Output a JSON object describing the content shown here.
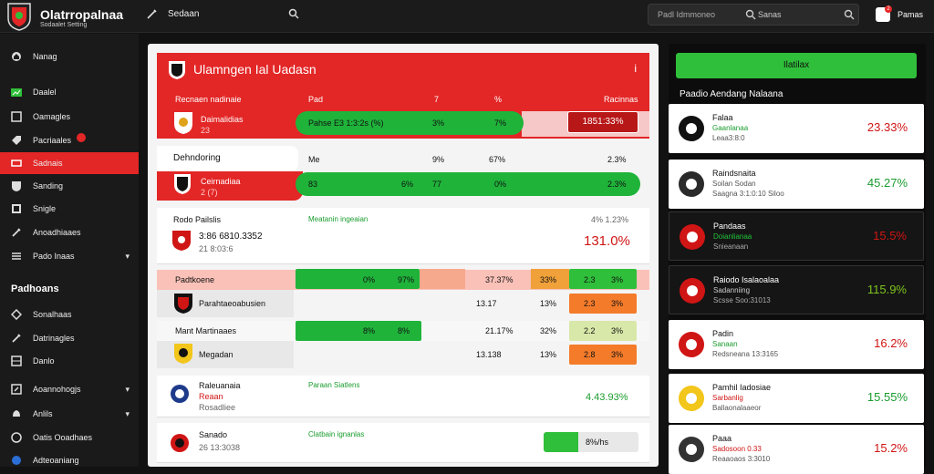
{
  "app": {
    "title": "Olatrropalnaa",
    "subtitle": "Sodaalet Setting"
  },
  "topnav": {
    "label": "Sedaan"
  },
  "search": {
    "placeholder": "Padl Idmmoneo",
    "label": "Sanas"
  },
  "user": {
    "label": "Pamas",
    "badge": "2"
  },
  "sidebar": {
    "items": [
      {
        "label": "Nanag",
        "icon": "home-icon"
      },
      {
        "label": "Daalel",
        "icon": "chart-icon"
      },
      {
        "label": "Oamagles",
        "icon": "calendar-icon"
      },
      {
        "label": "Pacriaales",
        "icon": "tag-icon"
      },
      {
        "label": "Sadnais",
        "icon": "ticket-icon",
        "active": true
      },
      {
        "label": "Sanding",
        "icon": "shield-icon"
      },
      {
        "label": "Snigle",
        "icon": "grid-icon"
      },
      {
        "label": "Anoadhiaaes",
        "icon": "edit-icon"
      },
      {
        "label": "Pado Inaas",
        "icon": "list-icon"
      }
    ],
    "section_title": "Padhoans",
    "section_items": [
      {
        "label": "Sonalhaas",
        "icon": "pin-icon"
      },
      {
        "label": "Datrinagles",
        "icon": "edit-icon"
      },
      {
        "label": "Danlo",
        "icon": "table-icon"
      },
      {
        "label": "Aoannohogjs",
        "icon": "export-icon"
      },
      {
        "label": "Anlils",
        "icon": "bell-icon"
      },
      {
        "label": "Oatis Ooadhaes",
        "icon": "user-icon"
      },
      {
        "label": "Adteoaniang",
        "icon": "globe-icon"
      }
    ]
  },
  "main": {
    "hero": {
      "title": "Ulamngen Ial Uadasn",
      "menu": "i",
      "headers": [
        "Recnaen nadinaie",
        "Pad",
        "7",
        "%",
        "Racinnas"
      ],
      "row": {
        "team": "Daimalidias",
        "sub": "23",
        "bar": [
          "Pahse E3 1:3:2s (%)",
          "3%",
          "7%"
        ],
        "value": "1851:33%"
      }
    },
    "row2": {
      "label": "Dehndoring",
      "team": "Ceirnadiaa",
      "sub": "2 (7)",
      "cols": [
        "Me",
        "9%",
        "67%",
        "2.3%"
      ],
      "bar": [
        "83",
        "6%",
        "77",
        "0%",
        "2.3%"
      ]
    },
    "card1": {
      "title": "Rodo Pailslis",
      "green_label": "Meatanin ingeaian",
      "line": "3:86 6810.3352",
      "sub": "21 8:03:6",
      "top_right": "4% 1.23%",
      "value": "131.0%"
    },
    "table": {
      "header": "Padtkoene",
      "row1": {
        "team": "Parahtaeoabusien",
        "bar": [
          "0%",
          "97%"
        ],
        "cols": [
          "37.37%",
          "33%",
          "2.3",
          "3%"
        ],
        "c2": [
          "13.17",
          "13%",
          "2.3",
          "3%"
        ]
      },
      "row2_header": "Mant Martinaaes",
      "row2": {
        "team": "Megadan",
        "bar": [
          "8%",
          "8%"
        ],
        "cols": [
          "21.17%",
          "32%",
          "2.2",
          "3%"
        ],
        "c2": [
          "13.138",
          "13%",
          "2.8",
          "3%"
        ]
      }
    },
    "card3": {
      "title": "Raleuanaia",
      "sub1": "Reaan",
      "sub2": "Rosadliee",
      "green_label": "Paraan Siatlens",
      "value": "4.43.93%"
    },
    "card4": {
      "title": "Sanado",
      "sub": "26 13:3038",
      "green_label": "Clatbain ignanlas",
      "bar": "8%/hs"
    }
  },
  "rightpanel": {
    "cta": "Ilatilax",
    "title": "Paadio Aendang Nalaana",
    "cards": [
      {
        "name": "Falaa",
        "s1": "Gaanlanaa",
        "s2": "Leaa3:8:0",
        "pct": "23.33%",
        "pct_color": "#d01515",
        "s1_color": "#1a9c2e",
        "dark": false
      },
      {
        "name": "Raindsnaita",
        "s1": "Soilan Sodan",
        "s2": "Saagna 3:1:0:10 Siloo",
        "pct": "45.27%",
        "pct_color": "#1a9c2e",
        "s1_color": "#555",
        "dark": false
      },
      {
        "name": "Pandaas",
        "s1": "Doianlianaa",
        "s2": "Snieanaan",
        "pct": "15.5%",
        "pct_color": "#d01515",
        "s1_color": "#1fc43a",
        "dark": true
      },
      {
        "name": "Raiodo Isalaoalaa",
        "s1": "Sadanniing",
        "s2": "Scsse Soo:31013",
        "pct": "115.9%",
        "pct_color": "#7ec41f",
        "s1_color": "#ccc",
        "dark": true
      },
      {
        "name": "Padin",
        "s1": "Sanaan",
        "s2": "Redsneana 13:3165",
        "pct": "16.2%",
        "pct_color": "#d01515",
        "s1_color": "#1a9c2e",
        "dark": false
      },
      {
        "name": "Pamhil Iadosiae",
        "s1": "Sarbanlig",
        "s2": "Ballaonalaaeor",
        "pct": "15.55%",
        "pct_color": "#1a9c2e",
        "s1_color": "#d01515",
        "dark": false
      },
      {
        "name": "Paaa",
        "s1": "Sadosoon 0.33",
        "s2": "Reaaoaos 3:3010",
        "pct": "15.2%",
        "pct_color": "#d01515",
        "s1_color": "#d01515",
        "dark": false
      }
    ]
  },
  "colors": {
    "accent": "#e32626",
    "green": "#1fb33a",
    "dark_bg": "#121212"
  }
}
